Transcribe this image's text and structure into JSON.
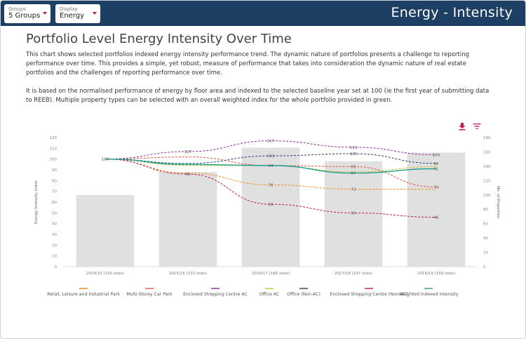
{
  "header": {
    "groups_label": "Groups",
    "groups_value": "5 Groups",
    "display_label": "Display",
    "display_value": "Energy",
    "page_title": "Energy - Intensity"
  },
  "main": {
    "title": "Portfolio Level Energy Intensity Over Time",
    "paragraph1": "This chart shows selected portfolios indexed energy intensity performance trend. The dynamic nature of portfolios presents a challenge to reporting performance over time. This provides a simple, yet robust, measure of performance that takes into consideration the dynamic nature of real estate portfolios and the challenges of reporting performance over time.",
    "paragraph2": "It is based on the normalised performance of energy by floor area and indexed to the selected baseline year set at 100 (ie the first year of submitting data to REEB). Multiple property types can be selected with an overall weighted index for the whole portfolio provided in green.",
    "download_icon": "download-icon",
    "filter_icon": "filter-icon"
  },
  "chart_data": {
    "type": "bar+line",
    "categories": [
      "2014/15 (100 sites)",
      "2015/16 (132 sites)",
      "2016/17 (166 sites)",
      "2017/18 (147 sites)",
      "2018/19 (159 sites)"
    ],
    "ylabel_left": "Energy Intensity Index",
    "ylabel_right": "No. of Properties",
    "ylim_left": [
      0,
      120
    ],
    "ylim_right": [
      0,
      180
    ],
    "left_ticks": [
      0,
      10,
      20,
      30,
      40,
      50,
      60,
      70,
      80,
      90,
      100,
      110,
      120
    ],
    "right_ticks": [
      0,
      20,
      40,
      60,
      80,
      100,
      120,
      140,
      160,
      180
    ],
    "bars": {
      "name": "No. of Properties",
      "values": [
        100,
        132,
        166,
        147,
        159
      ],
      "color": "#e0e0e0"
    },
    "series": [
      {
        "name": "Retail, Leisure and Industrial Park",
        "color": "#f28a1b",
        "dashed": true,
        "values": [
          100,
          87,
          76,
          72,
          72
        ],
        "labels": [
          "",
          "",
          "76",
          "72",
          ""
        ]
      },
      {
        "name": "Multi-Storey Car Park",
        "color": "#e8513a",
        "dashed": true,
        "values": [
          100,
          102,
          94,
          93,
          74
        ],
        "labels": [
          "",
          "",
          "94",
          "93",
          "74"
        ]
      },
      {
        "name": "Enclosed Shopping Centre AC",
        "color": "#8e2c8f",
        "dashed": true,
        "values": [
          100,
          107,
          117,
          111,
          104
        ],
        "labels": [
          "",
          "107",
          "117",
          "111",
          "104"
        ]
      },
      {
        "name": "Office AC",
        "color": "#c8c020",
        "dashed": true,
        "values": [
          100,
          94,
          94,
          88,
          93
        ],
        "labels": [
          "",
          "",
          "",
          "",
          ""
        ]
      },
      {
        "name": "Office (Non-AC)",
        "color": "#26406b",
        "dashed": true,
        "values": [
          100,
          96,
          103,
          105,
          96
        ],
        "labels": [
          "",
          "",
          "103",
          "105",
          "96"
        ]
      },
      {
        "name": "Enclosed Shopping Centre (Non-AC)",
        "color": "#c2185b",
        "dashed": true,
        "values": [
          100,
          86,
          58,
          50,
          46
        ],
        "labels": [
          "",
          "86",
          "58",
          "50",
          "46"
        ]
      },
      {
        "name": "Weighted Indexed Intensity",
        "color": "#1a9e8c",
        "dashed": false,
        "values": [
          100,
          95,
          94,
          87,
          91
        ],
        "labels": [
          "100",
          "",
          "",
          "87",
          "91"
        ]
      }
    ],
    "legend_position": "bottom"
  }
}
